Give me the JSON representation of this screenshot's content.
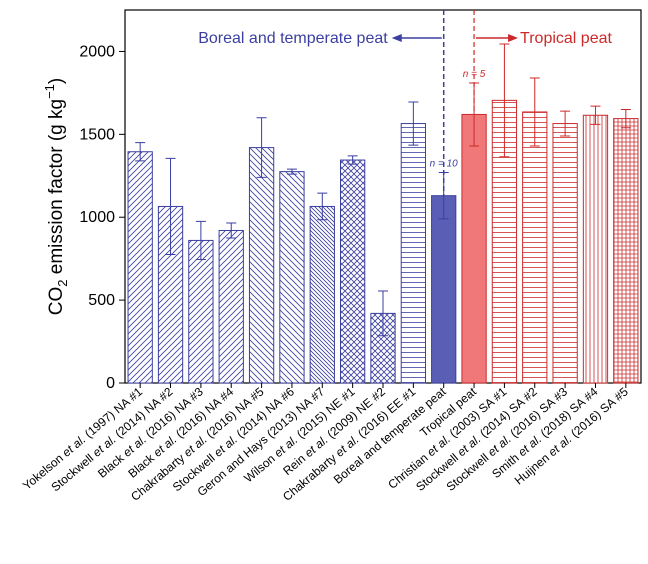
{
  "colors": {
    "boreal": "#3b3fa0",
    "boreal_fill": "#5a5fb5",
    "tropical": "#cc2a2a",
    "tropical_fill": "#f07878",
    "axis": "#000000"
  },
  "chart_data": {
    "type": "bar",
    "ylabel_main": "CO",
    "ylabel_sub": "2",
    "ylabel_rest": " emission factor (g kg",
    "ylabel_sup": "−1",
    "ylabel_end": ")",
    "ylim": [
      0,
      2250
    ],
    "yticks": [
      "0",
      "500",
      "1000",
      "1500",
      "2000"
    ],
    "ytick_values": [
      0,
      500,
      1000,
      1500,
      2000
    ],
    "grid": false,
    "region_left_label": "Boreal and temperate peat",
    "region_right_label": "Tropical peat",
    "bars": [
      {
        "label_parts": [
          "Yokelson ",
          "et al.",
          " (1997) NA #1"
        ],
        "value": 1395,
        "err": 55,
        "group": "boreal",
        "pattern": "hatch-right"
      },
      {
        "label_parts": [
          "Stockwell ",
          "et al.",
          " (2014) NA #2"
        ],
        "value": 1065,
        "err": 290,
        "group": "boreal",
        "pattern": "hatch-right"
      },
      {
        "label_parts": [
          "Black ",
          "et al.",
          " (2016) NA #3"
        ],
        "value": 860,
        "err": 115,
        "group": "boreal",
        "pattern": "hatch-right"
      },
      {
        "label_parts": [
          "Black ",
          "et al.",
          " (2016) NA #4"
        ],
        "value": 920,
        "err": 45,
        "group": "boreal",
        "pattern": "hatch-right"
      },
      {
        "label_parts": [
          "Chakrabarty ",
          "et al.",
          " (2016) NA #5"
        ],
        "value": 1420,
        "err": 180,
        "group": "boreal",
        "pattern": "hatch-left"
      },
      {
        "label_parts": [
          "Stockwell ",
          "et al.",
          " (2014) NA #6"
        ],
        "value": 1275,
        "err": 15,
        "group": "boreal",
        "pattern": "hatch-left"
      },
      {
        "label_parts": [
          "Geron and Hays (2013) NA #7"
        ],
        "value": 1065,
        "err": 80,
        "group": "boreal",
        "pattern": "hatch-left-dense"
      },
      {
        "label_parts": [
          "Wilson ",
          "et al.",
          " (2015) NE #1"
        ],
        "value": 1345,
        "err": 25,
        "group": "boreal",
        "pattern": "crosshatch"
      },
      {
        "label_parts": [
          "Rein ",
          "et al.",
          " (2009) NE #2"
        ],
        "value": 420,
        "err": 135,
        "group": "boreal",
        "pattern": "crosshatch"
      },
      {
        "label_parts": [
          "Chakrabarty ",
          "et al.",
          " (2016) EE #1"
        ],
        "value": 1565,
        "err": 130,
        "group": "boreal",
        "pattern": "horizontal"
      },
      {
        "label_parts": [
          "Boreal and temperate peat"
        ],
        "value": 1130,
        "err": 140,
        "group": "boreal",
        "pattern": "solid",
        "annotation": "n = 10"
      },
      {
        "label_parts": [
          "Tropical peat"
        ],
        "value": 1620,
        "err": 190,
        "group": "tropical",
        "pattern": "solid",
        "annotation": "n = 5"
      },
      {
        "label_parts": [
          "Christian ",
          "et al.",
          " (2003) SA #1"
        ],
        "value": 1705,
        "err": 340,
        "group": "tropical",
        "pattern": "horizontal"
      },
      {
        "label_parts": [
          "Stockwell ",
          "et al.",
          " (2014) SA #2"
        ],
        "value": 1635,
        "err": 205,
        "group": "tropical",
        "pattern": "horizontal"
      },
      {
        "label_parts": [
          "Stockwell ",
          "et al.",
          " (2016) SA #3"
        ],
        "value": 1565,
        "err": 75,
        "group": "tropical",
        "pattern": "horizontal"
      },
      {
        "label_parts": [
          "Smith ",
          "et al.",
          " (2018) SA #4"
        ],
        "value": 1615,
        "err": 55,
        "group": "tropical",
        "pattern": "vertical"
      },
      {
        "label_parts": [
          "Huijnen ",
          "et al.",
          " (2016) SA #5"
        ],
        "value": 1595,
        "err": 55,
        "group": "tropical",
        "pattern": "grid"
      }
    ]
  }
}
